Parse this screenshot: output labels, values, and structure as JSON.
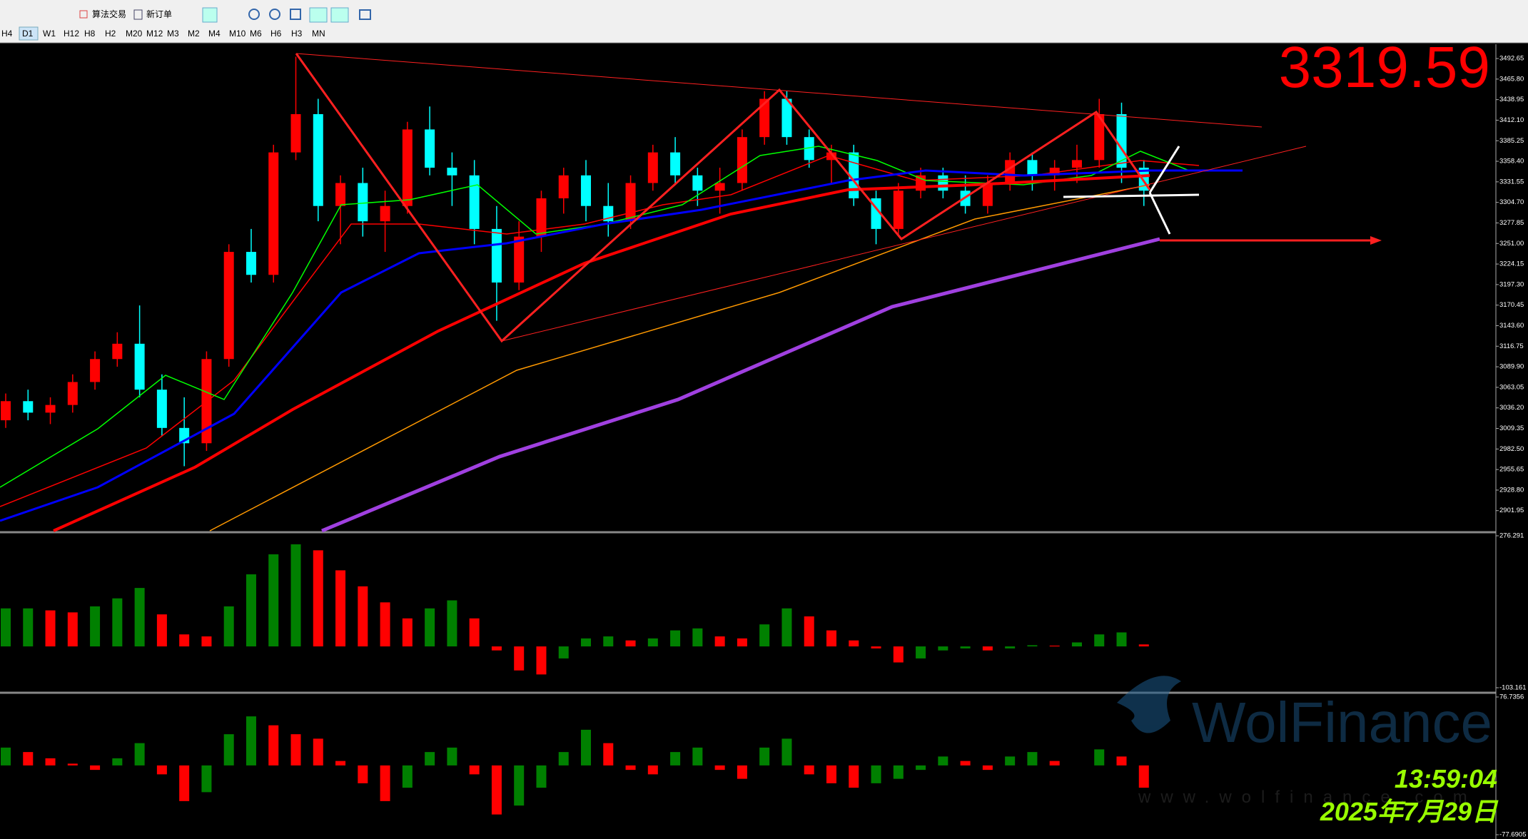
{
  "toolbar": {
    "items": [
      "算法交易",
      "新订单"
    ]
  },
  "timeframes": [
    "H4",
    "D1",
    "W1",
    "H12",
    "H8",
    "H2",
    "M20",
    "M12",
    "M3",
    "M2",
    "M4",
    "M10",
    "M6",
    "H6",
    "H3",
    "MN"
  ],
  "chart_data": [
    {
      "type": "candlestick",
      "up_color": "#ff0000",
      "down_color": "#00ffff",
      "open": [
        3020,
        3045,
        3030,
        3040,
        3070,
        3100,
        3120,
        3060,
        3010,
        2990,
        3100,
        3240,
        3210,
        3370,
        3420,
        3300,
        3330,
        3280,
        3300,
        3400,
        3350,
        3340,
        3270,
        3200,
        3260,
        3310,
        3340,
        3300,
        3280,
        3330,
        3370,
        3340,
        3320,
        3330,
        3390,
        3440,
        3390,
        3360,
        3370,
        3310,
        3270,
        3320,
        3340,
        3320,
        3300,
        3330,
        3360,
        3340,
        3350,
        3360,
        3420,
        3350
      ],
      "high": [
        3055,
        3060,
        3050,
        3080,
        3110,
        3135,
        3170,
        3080,
        3050,
        3110,
        3250,
        3270,
        3380,
        3495,
        3440,
        3340,
        3350,
        3320,
        3410,
        3430,
        3370,
        3360,
        3300,
        3280,
        3320,
        3350,
        3360,
        3330,
        3340,
        3380,
        3390,
        3350,
        3350,
        3400,
        3450,
        3450,
        3400,
        3380,
        3380,
        3320,
        3330,
        3350,
        3350,
        3340,
        3340,
        3370,
        3370,
        3360,
        3380,
        3440,
        3435,
        3360
      ],
      "low": [
        3010,
        3020,
        3015,
        3030,
        3060,
        3090,
        3050,
        3000,
        2960,
        2980,
        3090,
        3200,
        3200,
        3360,
        3280,
        3250,
        3260,
        3240,
        3290,
        3340,
        3300,
        3250,
        3150,
        3190,
        3240,
        3290,
        3280,
        3260,
        3270,
        3320,
        3330,
        3300,
        3290,
        3320,
        3380,
        3380,
        3350,
        3330,
        3300,
        3250,
        3260,
        3310,
        3310,
        3290,
        3290,
        3320,
        3320,
        3320,
        3330,
        3350,
        3330,
        3300
      ],
      "close": [
        3045,
        3030,
        3040,
        3070,
        3100,
        3120,
        3060,
        3010,
        2990,
        3100,
        3240,
        3210,
        3370,
        3420,
        3300,
        3330,
        3280,
        3300,
        3400,
        3350,
        3340,
        3270,
        3200,
        3260,
        3310,
        3340,
        3300,
        3280,
        3330,
        3370,
        3340,
        3320,
        3330,
        3390,
        3440,
        3390,
        3360,
        3370,
        3310,
        3270,
        3320,
        3340,
        3320,
        3300,
        3330,
        3360,
        3340,
        3350,
        3360,
        3420,
        3350,
        3320
      ],
      "ylim": [
        2875.6,
        3510.4
      ],
      "yticks": [
        3492.65,
        {
          "value": 3465.8,
          "label": "3465.80"
        },
        3438.95,
        {
          "value": 3412.1,
          "label": "3412.10"
        },
        3385.25,
        {
          "value": 3358.4,
          "label": "3358.40"
        },
        3331.55,
        {
          "value": 3304.7,
          "label": "3304.70"
        },
        3277.85,
        {
          "value": 3251,
          "label": "3251.00"
        },
        3224.15,
        {
          "value": 3197.3,
          "label": "3197.30"
        },
        3170.45,
        {
          "value": 3143.6,
          "label": "3143.60"
        },
        3116.75,
        {
          "value": 3089.9,
          "label": "3089.90"
        },
        3063.05,
        {
          "value": 3036.2,
          "label": "3036.20"
        },
        3009.35,
        {
          "value": 2982.5,
          "label": "2982.50"
        },
        2955.65,
        {
          "value": 2928.8,
          "label": "2928.80"
        },
        2901.95
      ],
      "last_price": 3319.59
    },
    {
      "type": "bar",
      "up_color": "#008000",
      "down_color": "#ff0000",
      "values": [
        95,
        95,
        90,
        85,
        100,
        120,
        146,
        80,
        30,
        25,
        100,
        180,
        230,
        255,
        240,
        190,
        150,
        110,
        70,
        95,
        115,
        70,
        -10,
        -60,
        -70,
        -30,
        20,
        25,
        15,
        20,
        40,
        45,
        25,
        20,
        55,
        95,
        75,
        40,
        15,
        -5,
        -40,
        -30,
        -10,
        -5,
        -10,
        -5,
        3,
        2,
        10,
        30,
        35,
        5
      ],
      "ylim": [
        -113.9,
        281.6
      ],
      "yticks": [
        276.291,
        -103.161
      ]
    },
    {
      "type": "bar",
      "up_color": "#008000",
      "down_color": "#ff0000",
      "values": [
        20,
        15,
        8,
        2,
        -5,
        8,
        25,
        -10,
        -40,
        -30,
        35,
        55,
        45,
        35,
        30,
        5,
        -20,
        -40,
        -25,
        15,
        20,
        -10,
        -55,
        -45,
        -25,
        15,
        40,
        25,
        -5,
        -10,
        15,
        20,
        -5,
        -15,
        20,
        30,
        -10,
        -20,
        -25,
        -20,
        -15,
        -5,
        10,
        5,
        -5,
        10,
        15,
        5,
        0,
        18,
        10,
        -25
      ],
      "ylim": [
        -82.5,
        79.9
      ],
      "yticks": [
        76.7356,
        -77.6905
      ]
    }
  ],
  "clock": {
    "time": "13:59:04",
    "date": "2025年7月29日"
  },
  "watermark": {
    "brand": "WolFinance",
    "url": "www.wolfinance.com"
  }
}
